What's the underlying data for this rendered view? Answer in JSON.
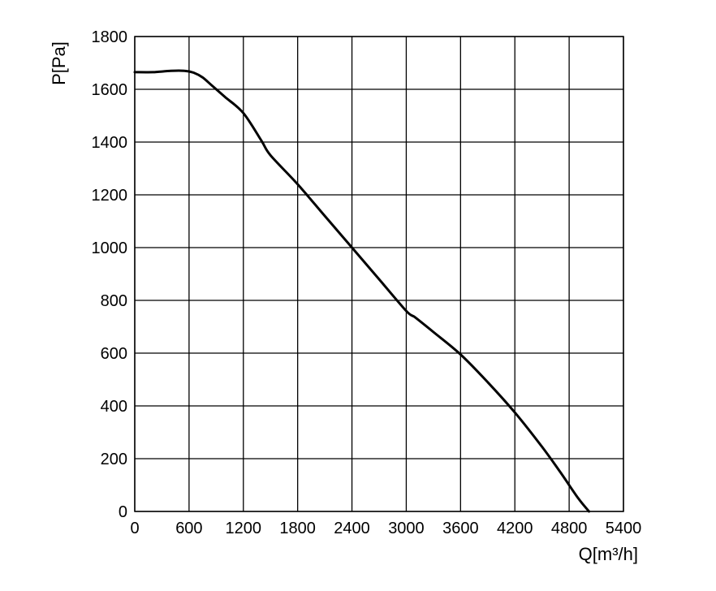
{
  "chart_data": {
    "type": "line",
    "title": "",
    "xlabel": "Q[m³/h]",
    "ylabel": "P[Pa]",
    "xlim": [
      0,
      5400
    ],
    "ylim": [
      0,
      1800
    ],
    "x_ticks": [
      0,
      600,
      1200,
      1800,
      2400,
      3000,
      3600,
      4200,
      4800,
      5400
    ],
    "y_ticks": [
      0,
      200,
      400,
      600,
      800,
      1000,
      1200,
      1400,
      1600,
      1800
    ],
    "grid": true,
    "legend": "none",
    "series": [
      {
        "x": [
          0,
          200,
          400,
          550,
          650,
          750,
          850,
          1000,
          1200,
          1400,
          1500,
          1800,
          2100,
          2400,
          2700,
          3000,
          3100,
          3300,
          3600,
          3900,
          4200,
          4500,
          4700,
          4900,
          5020
        ],
        "y": [
          1665,
          1665,
          1670,
          1670,
          1663,
          1645,
          1615,
          1570,
          1510,
          1405,
          1350,
          1240,
          1120,
          1000,
          880,
          760,
          735,
          680,
          595,
          490,
          375,
          245,
          150,
          50,
          0
        ]
      }
    ]
  },
  "colors": {
    "line": "#000000",
    "grid": "#000000",
    "background": "#ffffff"
  }
}
